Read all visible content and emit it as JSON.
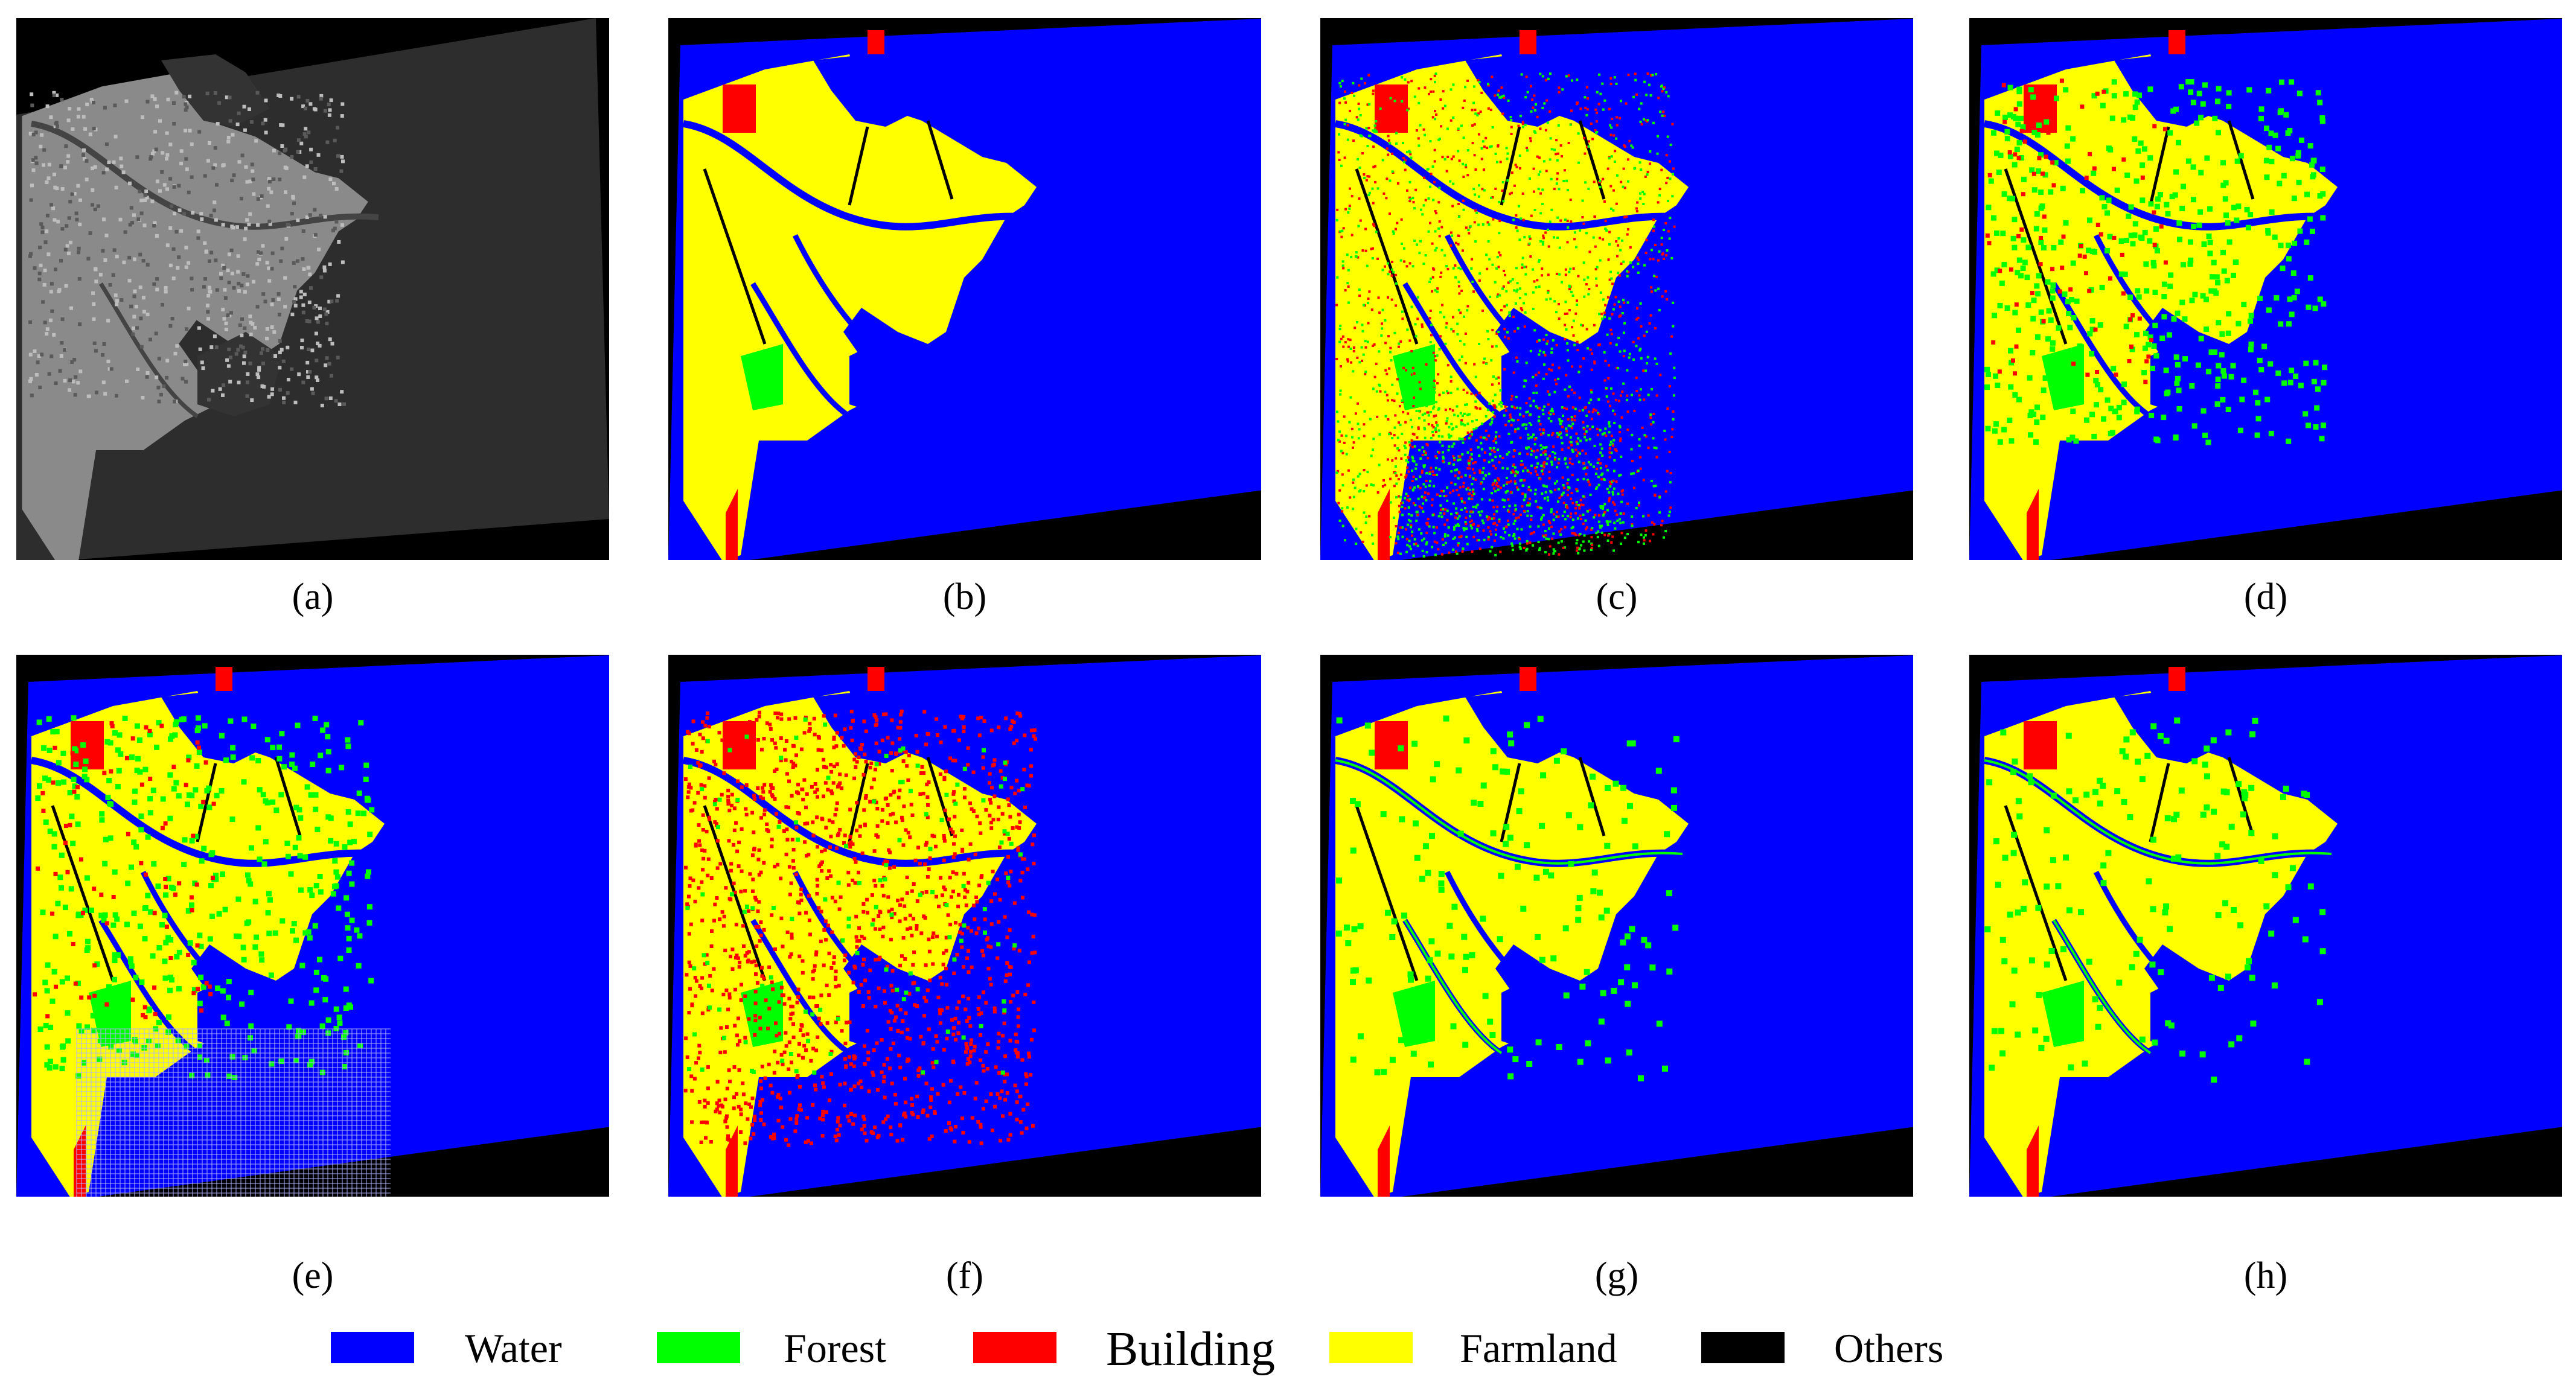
{
  "captions": [
    "(a)",
    "(b)",
    "(c)",
    "(d)",
    "(e)",
    "(f)",
    "(g)",
    "(h)"
  ],
  "legend": [
    {
      "label": "Water",
      "color": "#0000ff"
    },
    {
      "label": "Forest",
      "color": "#00ff00"
    },
    {
      "label": "Building",
      "color": "#ff0000"
    },
    {
      "label": "Farmland",
      "color": "#ffff00"
    },
    {
      "label": "Others",
      "color": "#000000"
    }
  ],
  "panels": [
    {
      "caption": "(a)",
      "kind": "sar-image"
    },
    {
      "caption": "(b)",
      "kind": "classification-map",
      "style": "ground-truth"
    },
    {
      "caption": "(c)",
      "kind": "classification-map",
      "style": "noisy-green-red"
    },
    {
      "caption": "(d)",
      "kind": "classification-map",
      "style": "green-speckled"
    },
    {
      "caption": "(e)",
      "kind": "classification-map",
      "style": "mesh-water"
    },
    {
      "caption": "(f)",
      "kind": "classification-map",
      "style": "red-speckled"
    },
    {
      "caption": "(g)",
      "kind": "classification-map",
      "style": "smooth"
    },
    {
      "caption": "(h)",
      "kind": "classification-map",
      "style": "smooth"
    }
  ]
}
